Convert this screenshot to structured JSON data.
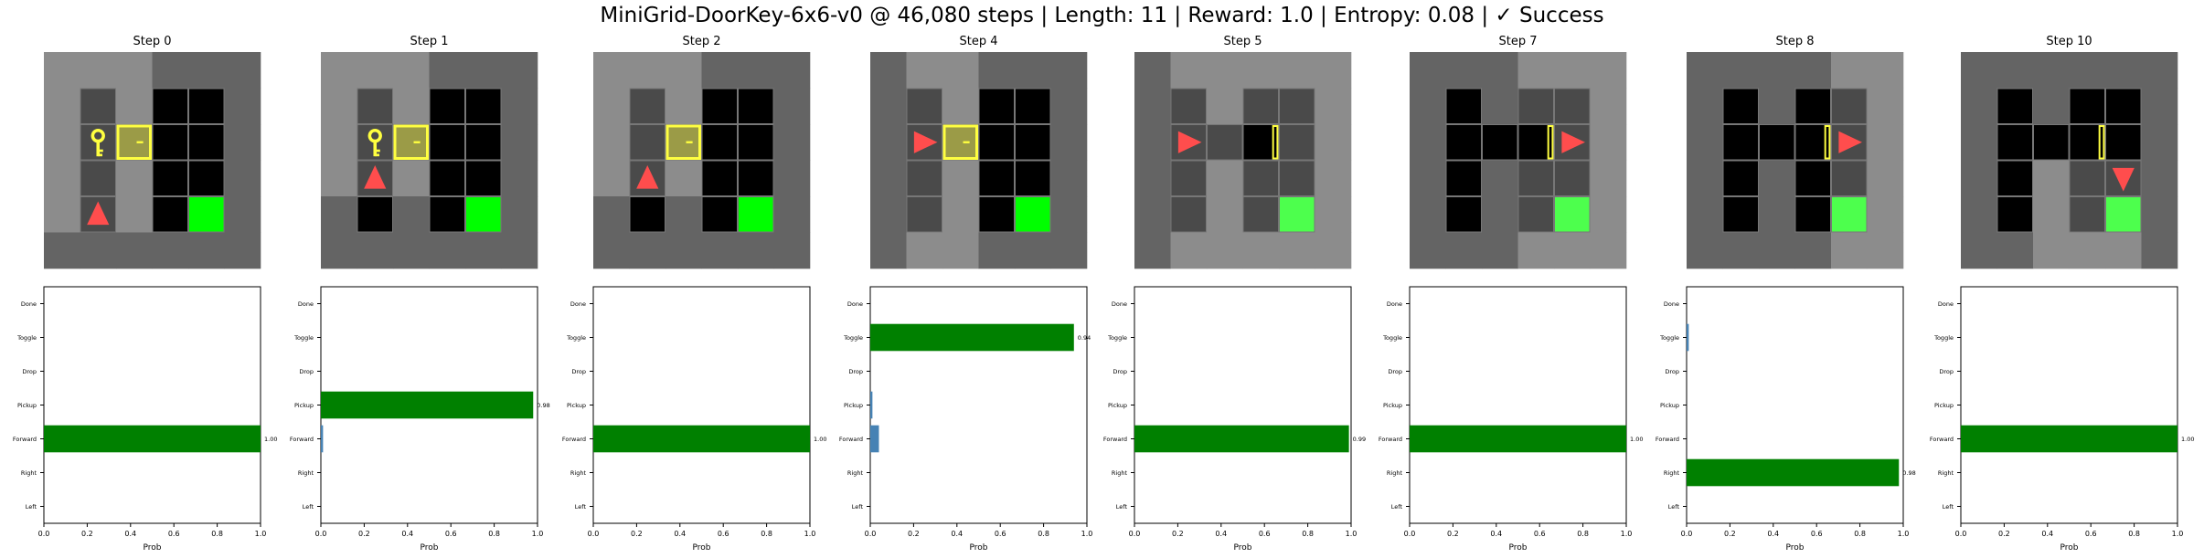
{
  "figure": {
    "title": "MiniGrid-DoorKey-6x6-v0 @ 46,080 steps | Length: 11 | Reward: 1.0 | Entropy: 0.08 | ✓ Success"
  },
  "colors": {
    "wall": "#646464",
    "floor_seen": "#8c8c8c",
    "floor_unseen": "#000000",
    "grid_line": "#777777",
    "wall_cell_dark": "#4a4a4a",
    "key": "#ffff40",
    "door_fill": "#9b9b47",
    "door_border": "#ffff40",
    "goal": "#00ff00",
    "goal_dim": "#4dff4d",
    "agent": "#ff4d4d",
    "chosen_bar": "#008000",
    "other_bar": "#4682b4"
  },
  "chart_data": [
    {
      "type": "bar",
      "title": "Step 0",
      "categories": [
        "Left",
        "Right",
        "Forward",
        "Pickup",
        "Drop",
        "Toggle",
        "Done"
      ],
      "values": [
        0,
        0,
        1.0,
        0,
        0,
        0,
        0
      ],
      "value_labels": [
        "",
        "",
        "1.00",
        "",
        "",
        "",
        ""
      ],
      "xlabel": "Prob",
      "xlim": [
        0,
        1
      ],
      "xticks": [
        "0.0",
        "0.2",
        "0.4",
        "0.6",
        "0.8",
        "1.0"
      ],
      "chosen": "Forward"
    },
    {
      "type": "bar",
      "title": "Step 1",
      "categories": [
        "Left",
        "Right",
        "Forward",
        "Pickup",
        "Drop",
        "Toggle",
        "Done"
      ],
      "values": [
        0,
        0,
        0.01,
        0.98,
        0,
        0,
        0
      ],
      "value_labels": [
        "",
        "",
        "",
        "0.98",
        "",
        "",
        ""
      ],
      "xlabel": "Prob",
      "xlim": [
        0,
        1
      ],
      "xticks": [
        "0.0",
        "0.2",
        "0.4",
        "0.6",
        "0.8",
        "1.0"
      ],
      "chosen": "Pickup"
    },
    {
      "type": "bar",
      "title": "Step 2",
      "categories": [
        "Left",
        "Right",
        "Forward",
        "Pickup",
        "Drop",
        "Toggle",
        "Done"
      ],
      "values": [
        0,
        0,
        1.0,
        0,
        0,
        0,
        0
      ],
      "value_labels": [
        "",
        "",
        "1.00",
        "",
        "",
        "",
        ""
      ],
      "xlabel": "Prob",
      "xlim": [
        0,
        1
      ],
      "xticks": [
        "0.0",
        "0.2",
        "0.4",
        "0.6",
        "0.8",
        "1.0"
      ],
      "chosen": "Forward"
    },
    {
      "type": "bar",
      "title": "Step 4",
      "categories": [
        "Left",
        "Right",
        "Forward",
        "Pickup",
        "Drop",
        "Toggle",
        "Done"
      ],
      "values": [
        0,
        0,
        0.04,
        0.01,
        0,
        0.94,
        0
      ],
      "value_labels": [
        "",
        "",
        "",
        "",
        "",
        "0.94",
        ""
      ],
      "xlabel": "Prob",
      "xlim": [
        0,
        1
      ],
      "xticks": [
        "0.0",
        "0.2",
        "0.4",
        "0.6",
        "0.8",
        "1.0"
      ],
      "chosen": "Toggle"
    },
    {
      "type": "bar",
      "title": "Step 5",
      "categories": [
        "Left",
        "Right",
        "Forward",
        "Pickup",
        "Drop",
        "Toggle",
        "Done"
      ],
      "values": [
        0,
        0,
        0.99,
        0,
        0,
        0,
        0
      ],
      "value_labels": [
        "",
        "",
        "0.99",
        "",
        "",
        "",
        ""
      ],
      "xlabel": "Prob",
      "xlim": [
        0,
        1
      ],
      "xticks": [
        "0.0",
        "0.2",
        "0.4",
        "0.6",
        "0.8",
        "1.0"
      ],
      "chosen": "Forward"
    },
    {
      "type": "bar",
      "title": "Step 7",
      "categories": [
        "Left",
        "Right",
        "Forward",
        "Pickup",
        "Drop",
        "Toggle",
        "Done"
      ],
      "values": [
        0,
        0,
        1.0,
        0,
        0,
        0,
        0
      ],
      "value_labels": [
        "",
        "",
        "1.00",
        "",
        "",
        "",
        ""
      ],
      "xlabel": "Prob",
      "xlim": [
        0,
        1
      ],
      "xticks": [
        "0.0",
        "0.2",
        "0.4",
        "0.6",
        "0.8",
        "1.0"
      ],
      "chosen": "Forward"
    },
    {
      "type": "bar",
      "title": "Step 8",
      "categories": [
        "Left",
        "Right",
        "Forward",
        "Pickup",
        "Drop",
        "Toggle",
        "Done"
      ],
      "values": [
        0,
        0.98,
        0,
        0,
        0,
        0.01,
        0
      ],
      "value_labels": [
        "",
        "0.98",
        "",
        "",
        "",
        "",
        ""
      ],
      "xlabel": "Prob",
      "xlim": [
        0,
        1
      ],
      "xticks": [
        "0.0",
        "0.2",
        "0.4",
        "0.6",
        "0.8",
        "1.0"
      ],
      "chosen": "Right"
    },
    {
      "type": "bar",
      "title": "Step 10",
      "categories": [
        "Left",
        "Right",
        "Forward",
        "Pickup",
        "Drop",
        "Toggle",
        "Done"
      ],
      "values": [
        0,
        0,
        1.0,
        0,
        0,
        0,
        0
      ],
      "value_labels": [
        "",
        "",
        "1.00",
        "",
        "",
        "",
        ""
      ],
      "xlabel": "Prob",
      "xlim": [
        0,
        1
      ],
      "xticks": [
        "0.0",
        "0.2",
        "0.4",
        "0.6",
        "0.8",
        "1.0"
      ],
      "chosen": "Forward"
    }
  ],
  "observations": [
    {
      "tiles": [
        [
          "F",
          "F",
          "F",
          "W",
          "W",
          "W"
        ],
        [
          "F",
          "D",
          "F",
          "U",
          "U",
          "W"
        ],
        [
          "F",
          "K",
          "O",
          "U",
          "U",
          "W"
        ],
        [
          "F",
          "D",
          "F",
          "U",
          "U",
          "W"
        ],
        [
          "F",
          "A:up",
          "F",
          "U",
          "G",
          "W"
        ],
        [
          "W",
          "W",
          "W",
          "W",
          "W",
          "W"
        ]
      ]
    },
    {
      "tiles": [
        [
          "F",
          "F",
          "F",
          "W",
          "W",
          "W"
        ],
        [
          "F",
          "D",
          "F",
          "U",
          "U",
          "W"
        ],
        [
          "F",
          "K",
          "O",
          "U",
          "U",
          "W"
        ],
        [
          "F",
          "A:up",
          "F",
          "U",
          "U",
          "W"
        ],
        [
          "W",
          "U",
          "W",
          "U",
          "G",
          "W"
        ],
        [
          "W",
          "W",
          "W",
          "W",
          "W",
          "W"
        ]
      ]
    },
    {
      "tiles": [
        [
          "F",
          "F",
          "F",
          "W",
          "W",
          "W"
        ],
        [
          "F",
          "D",
          "F",
          "U",
          "U",
          "W"
        ],
        [
          "F",
          "D",
          "O",
          "U",
          "U",
          "W"
        ],
        [
          "F",
          "A:up",
          "F",
          "U",
          "U",
          "W"
        ],
        [
          "W",
          "U",
          "W",
          "U",
          "G",
          "W"
        ],
        [
          "W",
          "W",
          "W",
          "W",
          "W",
          "W"
        ]
      ]
    },
    {
      "tiles": [
        [
          "W",
          "F",
          "F",
          "W",
          "W",
          "W"
        ],
        [
          "W",
          "D",
          "F",
          "U",
          "U",
          "W"
        ],
        [
          "W",
          "A:right",
          "O",
          "U",
          "U",
          "W"
        ],
        [
          "W",
          "D",
          "F",
          "U",
          "U",
          "W"
        ],
        [
          "W",
          "D",
          "F",
          "U",
          "G",
          "W"
        ],
        [
          "W",
          "F",
          "F",
          "W",
          "W",
          "W"
        ]
      ]
    },
    {
      "tiles": [
        [
          "W",
          "F",
          "F",
          "F",
          "F",
          "F"
        ],
        [
          "W",
          "D",
          "F",
          "D",
          "D",
          "F"
        ],
        [
          "W",
          "A:right",
          "D",
          "OL",
          "D",
          "F"
        ],
        [
          "W",
          "D",
          "F",
          "D",
          "D",
          "F"
        ],
        [
          "W",
          "D",
          "F",
          "D",
          "GD",
          "F"
        ],
        [
          "W",
          "F",
          "F",
          "F",
          "F",
          "F"
        ]
      ]
    },
    {
      "tiles": [
        [
          "W",
          "W",
          "W",
          "F",
          "F",
          "F"
        ],
        [
          "W",
          "U",
          "W",
          "D",
          "D",
          "F"
        ],
        [
          "W",
          "U",
          "U",
          "OL",
          "A:right",
          "F"
        ],
        [
          "W",
          "U",
          "W",
          "D",
          "D",
          "F"
        ],
        [
          "W",
          "U",
          "W",
          "D",
          "GD",
          "F"
        ],
        [
          "W",
          "W",
          "W",
          "F",
          "F",
          "F"
        ]
      ]
    },
    {
      "tiles": [
        [
          "W",
          "W",
          "W",
          "W",
          "F",
          "F"
        ],
        [
          "W",
          "U",
          "W",
          "U",
          "D",
          "F"
        ],
        [
          "W",
          "U",
          "U",
          "OL",
          "A:right",
          "F"
        ],
        [
          "W",
          "U",
          "W",
          "U",
          "D",
          "F"
        ],
        [
          "W",
          "U",
          "W",
          "U",
          "GD",
          "F"
        ],
        [
          "W",
          "W",
          "W",
          "W",
          "F",
          "F"
        ]
      ]
    },
    {
      "tiles": [
        [
          "W",
          "W",
          "W",
          "W",
          "W",
          "W"
        ],
        [
          "W",
          "U",
          "W",
          "U",
          "U",
          "W"
        ],
        [
          "W",
          "U",
          "U",
          "OL",
          "U",
          "W"
        ],
        [
          "W",
          "U",
          "F",
          "D",
          "A:down",
          "W"
        ],
        [
          "W",
          "U",
          "F",
          "D",
          "GD",
          "W"
        ],
        [
          "W",
          "W",
          "F",
          "F",
          "F",
          "W"
        ]
      ]
    }
  ]
}
